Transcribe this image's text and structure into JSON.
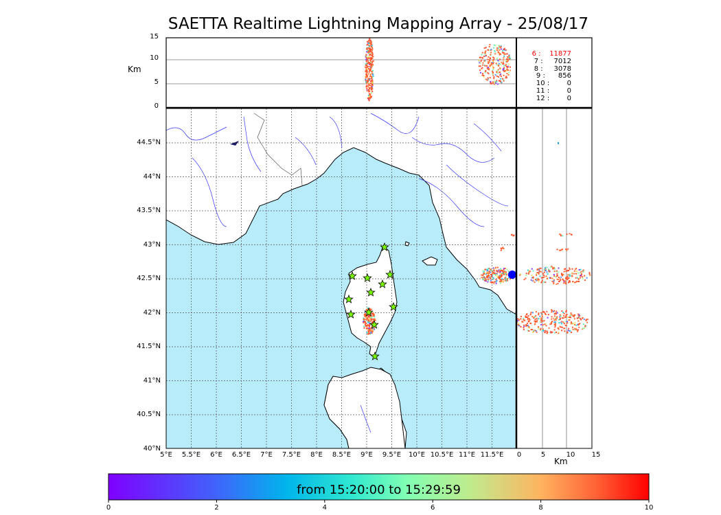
{
  "title": "SAETTA Realtime Lightning Mapping Array - 25/08/17",
  "altitude_panel": {
    "ylabel": "Km",
    "y_ticks": [
      "15",
      "10",
      "5",
      "0"
    ]
  },
  "side_panel": {
    "xlabel": "Km",
    "x_ticks": [
      "0",
      "5",
      "10",
      "15"
    ]
  },
  "map": {
    "lat_ticks": [
      "44.5°N",
      "44°N",
      "43.5°N",
      "43°N",
      "42.5°N",
      "42°N",
      "41.5°N",
      "41°N",
      "40.5°N",
      "40°N"
    ],
    "lon_ticks": [
      "5°E",
      "5.5°E",
      "6°E",
      "6.5°E",
      "7°E",
      "7.5°E",
      "8°E",
      "8.5°E",
      "9°E",
      "9.5°E",
      "10°E",
      "10.5°E",
      "11°E",
      "11.5°E"
    ],
    "colors": {
      "sea": "#b8ecfb",
      "land": "#ffffff",
      "rivers": "#3333ff",
      "stations": "#7cfc00"
    }
  },
  "counts": {
    "rows": [
      {
        "label": "6 :    11877",
        "color": "#ff0000"
      },
      {
        "label": "7 :     7012",
        "color": "#000000"
      },
      {
        "label": "8 :     3078",
        "color": "#000000"
      },
      {
        "label": "9 :      856",
        "color": "#000000"
      },
      {
        "label": "10 :        0",
        "color": "#000000"
      },
      {
        "label": "11 :        0",
        "color": "#000000"
      },
      {
        "label": "12 :        0",
        "color": "#000000"
      }
    ]
  },
  "colorbar": {
    "label": "from 15:20:00 to 15:29:59",
    "ticks": [
      "0",
      "2",
      "4",
      "6",
      "8",
      "10"
    ]
  }
}
